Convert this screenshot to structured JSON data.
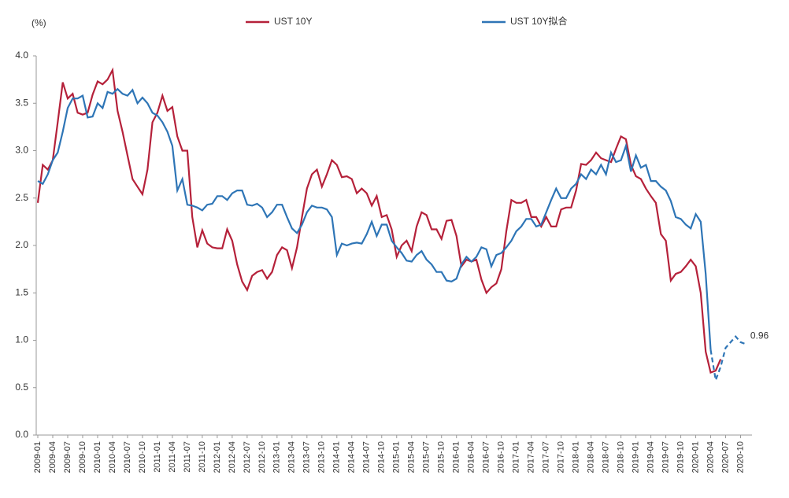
{
  "chart_data": {
    "type": "line",
    "unit_label": "(%)",
    "annotation": "0.96",
    "categories": [
      "2009-01",
      null,
      null,
      "2009-04",
      null,
      null,
      "2009-07",
      null,
      null,
      "2009-10",
      null,
      null,
      "2010-01",
      null,
      null,
      "2010-04",
      null,
      null,
      "2010-07",
      null,
      null,
      "2010-10",
      null,
      null,
      "2011-01",
      null,
      null,
      "2011-04",
      null,
      null,
      "2011-07",
      null,
      null,
      "2011-10",
      null,
      null,
      "2012-01",
      null,
      null,
      "2012-04",
      null,
      null,
      "2012-07",
      null,
      null,
      "2012-10",
      null,
      null,
      "2013-01",
      null,
      null,
      "2013-04",
      null,
      null,
      "2013-07",
      null,
      null,
      "2013-10",
      null,
      null,
      "2014-01",
      null,
      null,
      "2014-04",
      null,
      null,
      "2014-07",
      null,
      null,
      "2014-10",
      null,
      null,
      "2015-01",
      null,
      null,
      "2015-04",
      null,
      null,
      "2015-07",
      null,
      null,
      "2015-10",
      null,
      null,
      "2016-01",
      null,
      null,
      "2016-04",
      null,
      null,
      "2016-07",
      null,
      null,
      "2016-10",
      null,
      null,
      "2017-01",
      null,
      null,
      "2017-04",
      null,
      null,
      "2017-07",
      null,
      null,
      "2017-10",
      null,
      null,
      "2018-01",
      null,
      null,
      "2018-04",
      null,
      null,
      "2018-07",
      null,
      null,
      "2018-10",
      null,
      null,
      "2019-01",
      null,
      null,
      "2019-04",
      null,
      null,
      "2019-07",
      null,
      null,
      "2019-10",
      null,
      null,
      "2020-01",
      null,
      null,
      "2020-04",
      null,
      null,
      "2020-07",
      null,
      null,
      "2020-10",
      null
    ],
    "series": [
      {
        "name": "UST 10Y",
        "color": "#b5213a",
        "values": [
          2.45,
          2.85,
          2.8,
          2.9,
          3.3,
          3.72,
          3.55,
          3.6,
          3.4,
          3.38,
          3.4,
          3.59,
          3.73,
          3.7,
          3.75,
          3.85,
          3.42,
          3.2,
          2.95,
          2.7,
          2.62,
          2.54,
          2.8,
          3.3,
          3.4,
          3.58,
          3.42,
          3.46,
          3.15,
          3.0,
          3.0,
          2.3,
          1.98,
          2.16,
          2.02,
          1.98,
          1.97,
          1.97,
          2.17,
          2.05,
          1.8,
          1.62,
          1.53,
          1.68,
          1.72,
          1.74,
          1.65,
          1.72,
          1.9,
          1.98,
          1.95,
          1.76,
          1.98,
          2.3,
          2.6,
          2.75,
          2.8,
          2.62,
          2.75,
          2.9,
          2.85,
          2.72,
          2.73,
          2.7,
          2.55,
          2.6,
          2.55,
          2.42,
          2.52,
          2.3,
          2.32,
          2.17,
          1.88,
          2.0,
          2.05,
          1.94,
          2.2,
          2.35,
          2.32,
          2.17,
          2.17,
          2.07,
          2.26,
          2.27,
          2.1,
          1.78,
          1.85,
          1.83,
          1.85,
          1.64,
          1.5,
          1.56,
          1.6,
          1.75,
          2.15,
          2.48,
          2.45,
          2.45,
          2.48,
          2.3,
          2.3,
          2.2,
          2.3,
          2.2,
          2.2,
          2.38,
          2.4,
          2.4,
          2.58,
          2.86,
          2.85,
          2.9,
          2.98,
          2.92,
          2.9,
          2.88,
          3.02,
          3.15,
          3.12,
          2.85,
          2.73,
          2.7,
          2.6,
          2.52,
          2.45,
          2.12,
          2.05,
          1.63,
          1.7,
          1.72,
          1.78,
          1.85,
          1.78,
          1.5,
          0.88,
          0.66,
          0.68,
          0.8,
          null,
          null,
          null,
          null,
          null
        ]
      },
      {
        "name": "UST 10Y拟合",
        "color": "#2e75b6",
        "dashed_from": 136,
        "values": [
          2.68,
          2.65,
          2.75,
          2.9,
          2.98,
          3.2,
          3.45,
          3.55,
          3.55,
          3.58,
          3.35,
          3.36,
          3.5,
          3.45,
          3.62,
          3.6,
          3.65,
          3.6,
          3.58,
          3.64,
          3.5,
          3.56,
          3.5,
          3.4,
          3.37,
          3.3,
          3.2,
          3.05,
          2.58,
          2.7,
          2.43,
          2.42,
          2.4,
          2.37,
          2.43,
          2.44,
          2.52,
          2.52,
          2.48,
          2.55,
          2.58,
          2.58,
          2.43,
          2.42,
          2.44,
          2.4,
          2.3,
          2.35,
          2.43,
          2.43,
          2.3,
          2.18,
          2.13,
          2.22,
          2.35,
          2.42,
          2.4,
          2.4,
          2.38,
          2.3,
          1.9,
          2.02,
          2.0,
          2.02,
          2.03,
          2.02,
          2.12,
          2.25,
          2.1,
          2.22,
          2.22,
          2.05,
          1.98,
          1.92,
          1.84,
          1.83,
          1.9,
          1.94,
          1.85,
          1.8,
          1.72,
          1.72,
          1.63,
          1.62,
          1.65,
          1.8,
          1.88,
          1.83,
          1.88,
          1.98,
          1.96,
          1.78,
          1.9,
          1.92,
          1.98,
          2.05,
          2.15,
          2.2,
          2.28,
          2.28,
          2.2,
          2.22,
          2.35,
          2.48,
          2.6,
          2.5,
          2.5,
          2.6,
          2.65,
          2.75,
          2.7,
          2.8,
          2.75,
          2.85,
          2.75,
          2.98,
          2.88,
          2.9,
          3.05,
          2.78,
          2.95,
          2.82,
          2.85,
          2.68,
          2.68,
          2.62,
          2.58,
          2.47,
          2.3,
          2.28,
          2.22,
          2.18,
          2.33,
          2.25,
          1.7,
          0.9,
          0.58,
          0.72,
          0.92,
          0.98,
          1.04,
          0.98,
          0.96
        ]
      }
    ],
    "ylim": [
      0,
      4
    ],
    "yticks": [
      {
        "value": 0,
        "label": "0.0"
      },
      0.5,
      {
        "value": 1,
        "label": "1.0"
      },
      1.5,
      {
        "value": 2,
        "label": "2.0"
      },
      2.5,
      {
        "value": 3,
        "label": "3.0"
      },
      3.5,
      {
        "value": 4,
        "label": "4.0"
      }
    ],
    "grid": false
  }
}
